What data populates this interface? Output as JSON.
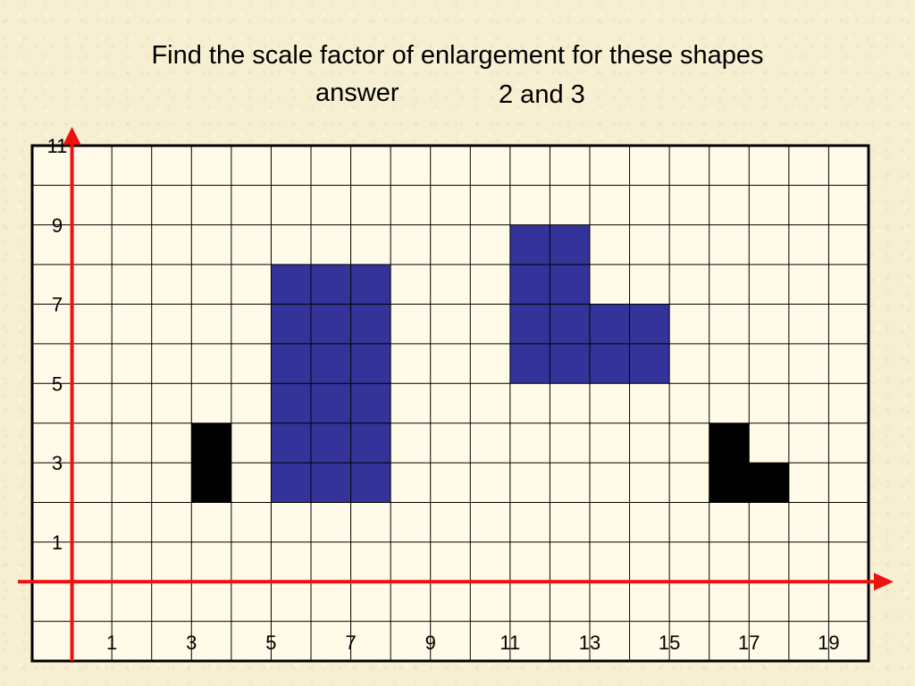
{
  "slide": {
    "title": "Find the scale factor of enlargement for these shapes",
    "answer_label": "answer",
    "answer_value": "2 and 3"
  },
  "colors": {
    "grid_background": "#fffbe8",
    "grid_line": "#000000",
    "axis": "#ee1111",
    "shape_blue": "#333399",
    "shape_black": "#000000"
  },
  "grid": {
    "x_labels": [
      "1",
      "3",
      "5",
      "7",
      "9",
      "11",
      "13",
      "15",
      "17",
      "19"
    ],
    "y_labels": [
      "11",
      "9",
      "7",
      "5",
      "3",
      "1"
    ],
    "x_range": [
      0,
      21
    ],
    "y_range": [
      0,
      12
    ]
  },
  "shapes": [
    {
      "name": "small-rectangle",
      "color": "black",
      "cells": [
        [
          3,
          2
        ],
        [
          3,
          3
        ]
      ]
    },
    {
      "name": "large-rectangle",
      "color": "blue",
      "cells": [
        [
          5,
          2
        ],
        [
          6,
          2
        ],
        [
          7,
          2
        ],
        [
          5,
          3
        ],
        [
          6,
          3
        ],
        [
          7,
          3
        ],
        [
          5,
          4
        ],
        [
          6,
          4
        ],
        [
          7,
          4
        ],
        [
          5,
          5
        ],
        [
          6,
          5
        ],
        [
          7,
          5
        ],
        [
          5,
          6
        ],
        [
          6,
          6
        ],
        [
          7,
          6
        ],
        [
          5,
          7
        ],
        [
          6,
          7
        ],
        [
          7,
          7
        ]
      ]
    },
    {
      "name": "small-l-shape",
      "color": "black",
      "cells": [
        [
          16,
          2
        ],
        [
          17,
          2
        ],
        [
          16,
          3
        ]
      ]
    },
    {
      "name": "large-l-shape",
      "color": "blue",
      "cells": [
        [
          11,
          5
        ],
        [
          12,
          5
        ],
        [
          13,
          5
        ],
        [
          14,
          5
        ],
        [
          11,
          6
        ],
        [
          12,
          6
        ],
        [
          13,
          6
        ],
        [
          14,
          6
        ],
        [
          11,
          7
        ],
        [
          12,
          7
        ],
        [
          11,
          8
        ],
        [
          12,
          8
        ]
      ]
    }
  ]
}
